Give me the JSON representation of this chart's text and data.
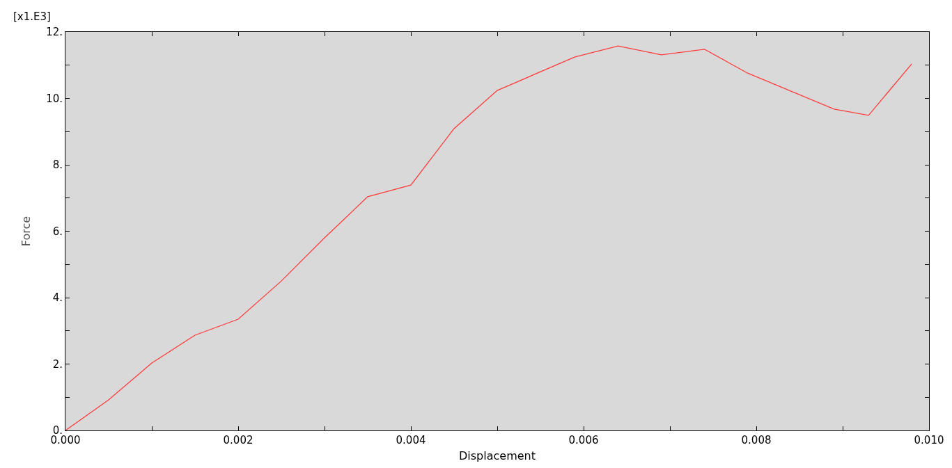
{
  "chart_data": {
    "type": "line",
    "xlabel": "Displacement",
    "ylabel": "Force",
    "annotations": [
      "[x1.E3]"
    ],
    "x": [
      0,
      0.0005,
      0.001,
      0.0015,
      0.002,
      0.0025,
      0.003,
      0.0035,
      0.004,
      0.0045,
      0.005,
      0.0059,
      0.0064,
      0.0069,
      0.0074,
      0.0079,
      0.0089,
      0.0093,
      0.0098
    ],
    "series": [
      {
        "color": "#ff3b3b",
        "values": [
          0,
          0.92,
          2.03,
          2.87,
          3.35,
          4.5,
          5.8,
          7.04,
          7.39,
          9.09,
          10.24,
          11.25,
          11.58,
          11.31,
          11.48,
          10.76,
          9.68,
          9.49,
          11.04
        ]
      }
    ],
    "xlim": [
      0,
      0.01
    ],
    "ylim": [
      0,
      12
    ],
    "xticks": [
      {
        "value": 0,
        "label": "0.000"
      },
      {
        "value": 0.001,
        "label": null
      },
      {
        "value": 0.002,
        "label": "0.002"
      },
      {
        "value": 0.003,
        "label": null
      },
      {
        "value": 0.004,
        "label": "0.004"
      },
      {
        "value": 0.005,
        "label": null
      },
      {
        "value": 0.006,
        "label": "0.006"
      },
      {
        "value": 0.007,
        "label": null
      },
      {
        "value": 0.008,
        "label": "0.008"
      },
      {
        "value": 0.009,
        "label": null
      },
      {
        "value": 0.01,
        "label": "0.010"
      }
    ],
    "yticks": [
      {
        "value": 0,
        "label": "0."
      },
      {
        "value": 1,
        "label": null
      },
      {
        "value": 2,
        "label": "2."
      },
      {
        "value": 3,
        "label": null
      },
      {
        "value": 4,
        "label": "4."
      },
      {
        "value": 5,
        "label": null
      },
      {
        "value": 6,
        "label": "6."
      },
      {
        "value": 7,
        "label": null
      },
      {
        "value": 8,
        "label": "8."
      },
      {
        "value": 9,
        "label": null
      },
      {
        "value": 10,
        "label": "10."
      },
      {
        "value": 11,
        "label": null
      },
      {
        "value": 12,
        "label": "12."
      }
    ],
    "grid": false,
    "marker": "none",
    "line_style": "solid"
  }
}
